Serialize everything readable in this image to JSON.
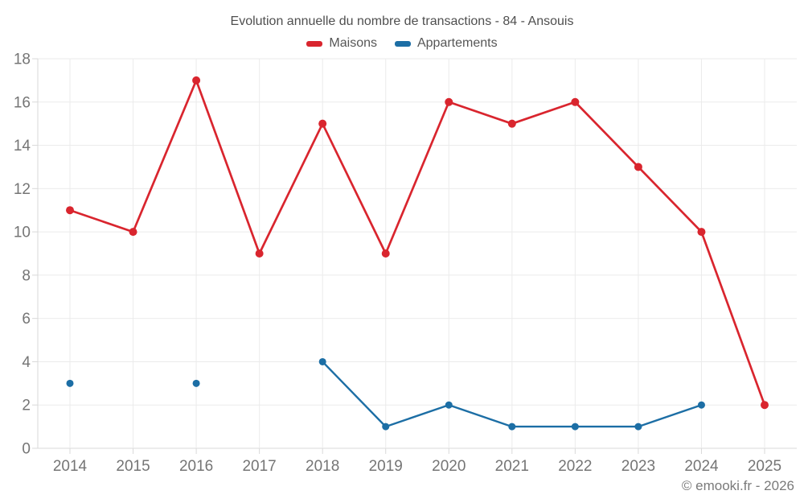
{
  "title": "Evolution annuelle du nombre de transactions - 84 - Ansouis",
  "legend": {
    "items": [
      {
        "label": "Maisons",
        "color": "#d9252e"
      },
      {
        "label": "Appartements",
        "color": "#1c6ea5"
      }
    ]
  },
  "watermark": "© emooki.fr - 2026",
  "chart_data": {
    "type": "line",
    "title": "Evolution annuelle du nombre de transactions - 84 - Ansouis",
    "x": [
      2014,
      2015,
      2016,
      2017,
      2018,
      2019,
      2020,
      2021,
      2022,
      2023,
      2024,
      2025
    ],
    "series": [
      {
        "name": "Maisons",
        "color": "#d9252e",
        "values": [
          11,
          10,
          17,
          9,
          15,
          9,
          16,
          15,
          16,
          13,
          10,
          2
        ],
        "marker_radius": 5,
        "line_width": 2.7
      },
      {
        "name": "Appartements",
        "color": "#1c6ea5",
        "values": [
          3,
          null,
          3,
          null,
          4,
          1,
          2,
          1,
          1,
          1,
          2,
          null
        ],
        "marker_radius": 4.5,
        "line_width": 2.4
      }
    ],
    "xlabel": "",
    "ylabel": "",
    "ylim": [
      0,
      18
    ],
    "ytick_step": 2,
    "grid": true,
    "legend_position": "top",
    "grid_color": "#ebebeb",
    "axis_color": "#d9d9d9",
    "tick_label_color": "#757575",
    "tick_label_size": 19
  }
}
